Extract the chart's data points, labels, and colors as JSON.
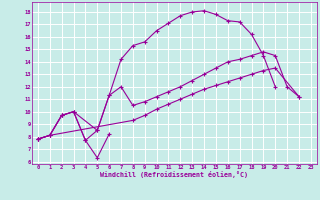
{
  "xlabel": "Windchill (Refroidissement éolien,°C)",
  "background_color": "#c8ece8",
  "grid_color": "#ffffff",
  "line_color": "#990099",
  "xlim": [
    -0.5,
    23.5
  ],
  "ylim": [
    5.8,
    18.8
  ],
  "xticks": [
    0,
    1,
    2,
    3,
    4,
    5,
    6,
    7,
    8,
    9,
    10,
    11,
    12,
    13,
    14,
    15,
    16,
    17,
    18,
    19,
    20,
    21,
    22,
    23
  ],
  "yticks": [
    6,
    7,
    8,
    9,
    10,
    11,
    12,
    13,
    14,
    15,
    16,
    17,
    18
  ],
  "series": [
    {
      "x": [
        0,
        1,
        2,
        3,
        4,
        5,
        6
      ],
      "y": [
        7.8,
        8.1,
        9.7,
        10.0,
        7.7,
        6.3,
        8.2
      ]
    },
    {
      "x": [
        0,
        1,
        2,
        3,
        4,
        5,
        6,
        7,
        8,
        9,
        10,
        11,
        12,
        13,
        14,
        15,
        16,
        17,
        18,
        19,
        20
      ],
      "y": [
        7.8,
        8.1,
        9.7,
        10.0,
        7.7,
        8.5,
        11.3,
        14.2,
        15.3,
        15.6,
        16.5,
        17.1,
        17.7,
        18.0,
        18.1,
        17.8,
        17.3,
        17.2,
        16.2,
        14.5,
        12.0
      ]
    },
    {
      "x": [
        0,
        1,
        2,
        3,
        5,
        6,
        7,
        8,
        9,
        10,
        11,
        12,
        13,
        14,
        15,
        16,
        17,
        18,
        19,
        20,
        21,
        22
      ],
      "y": [
        7.8,
        8.1,
        9.7,
        10.0,
        8.5,
        11.3,
        12.0,
        10.5,
        10.8,
        11.2,
        11.6,
        12.0,
        12.5,
        13.0,
        13.5,
        14.0,
        14.2,
        14.5,
        14.8,
        14.5,
        12.0,
        11.2
      ]
    },
    {
      "x": [
        0,
        1,
        8,
        9,
        10,
        11,
        12,
        13,
        14,
        15,
        16,
        17,
        18,
        19,
        20,
        22
      ],
      "y": [
        7.8,
        8.1,
        9.3,
        9.7,
        10.2,
        10.6,
        11.0,
        11.4,
        11.8,
        12.1,
        12.4,
        12.7,
        13.0,
        13.3,
        13.5,
        11.2
      ]
    }
  ]
}
